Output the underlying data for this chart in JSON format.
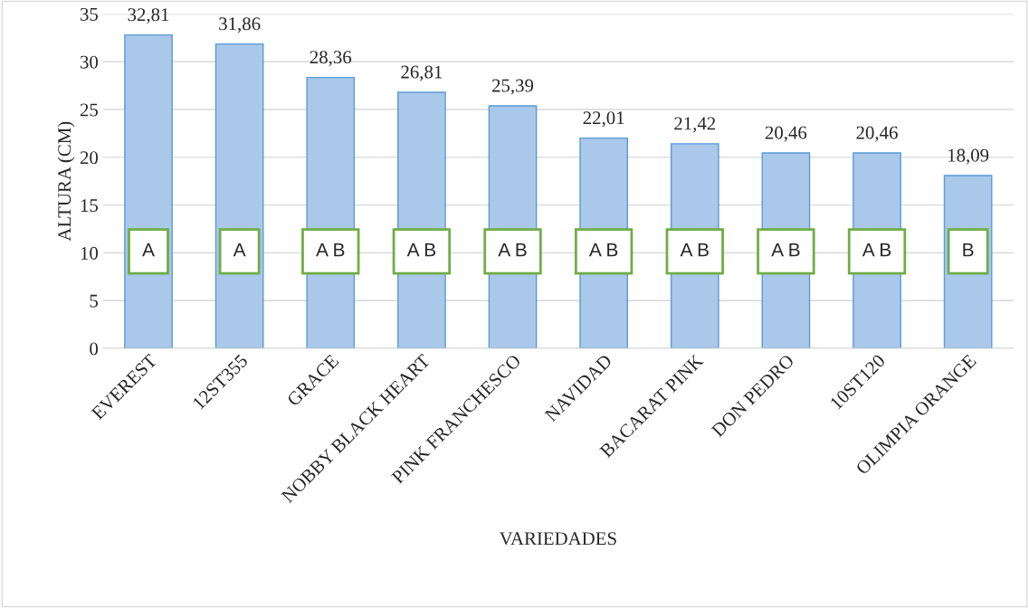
{
  "chart_data": {
    "type": "bar",
    "xlabel": "VARIEDADES",
    "ylabel": "ALTURA (CM)",
    "categories": [
      "EVEREST",
      "12ST355",
      "GRACE",
      "NOBBY BLACK HEART",
      "PINK FRANCHESCO",
      "NAVIDAD",
      "BACARAT PINK",
      "DON PEDRO",
      "10ST120",
      "OLIMPIA ORANGE"
    ],
    "values": [
      32.81,
      31.86,
      28.36,
      26.81,
      25.39,
      22.01,
      21.42,
      20.46,
      20.46,
      18.09
    ],
    "value_labels": [
      "32,81",
      "31,86",
      "28,36",
      "26,81",
      "25,39",
      "22,01",
      "21,42",
      "20,46",
      "20,46",
      "18,09"
    ],
    "color": "#a9c8ea",
    "ylim": [
      0,
      35
    ],
    "yticks": [
      0,
      5,
      10,
      15,
      20,
      25,
      30,
      35
    ],
    "grid": "y",
    "annotations": [
      "A",
      "A",
      "A B",
      "A B",
      "A B",
      "A B",
      "A B",
      "A B",
      "A B",
      "B"
    ]
  }
}
